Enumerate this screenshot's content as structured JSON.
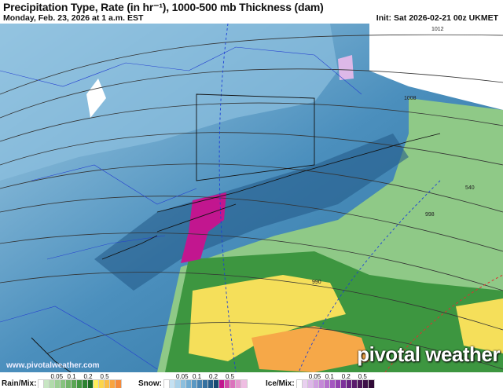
{
  "header": {
    "title": "Precipitation Type, Rate (in hr⁻¹), 1000-500 mb Thickness (dam)",
    "valid_time": "Monday, Feb. 23, 2026 at 1 a.m. EST",
    "init": "Init: Sat 2026-02-21 00z UKMET"
  },
  "map": {
    "contour_labels": {
      "p1012": "1012",
      "p1008": "1008",
      "t540": "540",
      "p998": "998",
      "p990": "990"
    },
    "watermark_url": "www.pivotalweather.com",
    "logo": "pivotal weather"
  },
  "legend": {
    "rain": {
      "label": "Rain/Mix:",
      "ticks": [
        "0.05",
        "0.1",
        "0.2",
        "0.5"
      ],
      "colors": [
        "#ffffff",
        "#c8e6c3",
        "#b1dbab",
        "#9ccf94",
        "#86c27e",
        "#71b469",
        "#5aa654",
        "#40963f",
        "#2b8230",
        "#1a6b22",
        "#ffef5a",
        "#fcd54a",
        "#fabd45",
        "#f8a440",
        "#f58a3b"
      ]
    },
    "snow": {
      "label": "Snow:",
      "ticks": [
        "0.05",
        "0.1",
        "0.2",
        "0.5"
      ],
      "colors": [
        "#ffffff",
        "#c4e1f2",
        "#a9d2ea",
        "#8cbfde",
        "#71acd2",
        "#5a98c3",
        "#4683b2",
        "#35709f",
        "#245c8a",
        "#184a72",
        "#c2168f",
        "#d04aa8",
        "#db72bc",
        "#e598cf",
        "#efbde2"
      ]
    },
    "ice": {
      "label": "Ice/Mix:",
      "ticks": [
        "0.05",
        "0.1",
        "0.2",
        "0.5"
      ],
      "colors": [
        "#ffffff",
        "#e9d0f0",
        "#ddb8e8",
        "#d0a0e0",
        "#c488d7",
        "#b56fcd",
        "#a457c0",
        "#9242b0",
        "#7d309b",
        "#692383",
        "#5a1b6c",
        "#4c1559",
        "#3e1048",
        "#310a37"
      ]
    }
  }
}
